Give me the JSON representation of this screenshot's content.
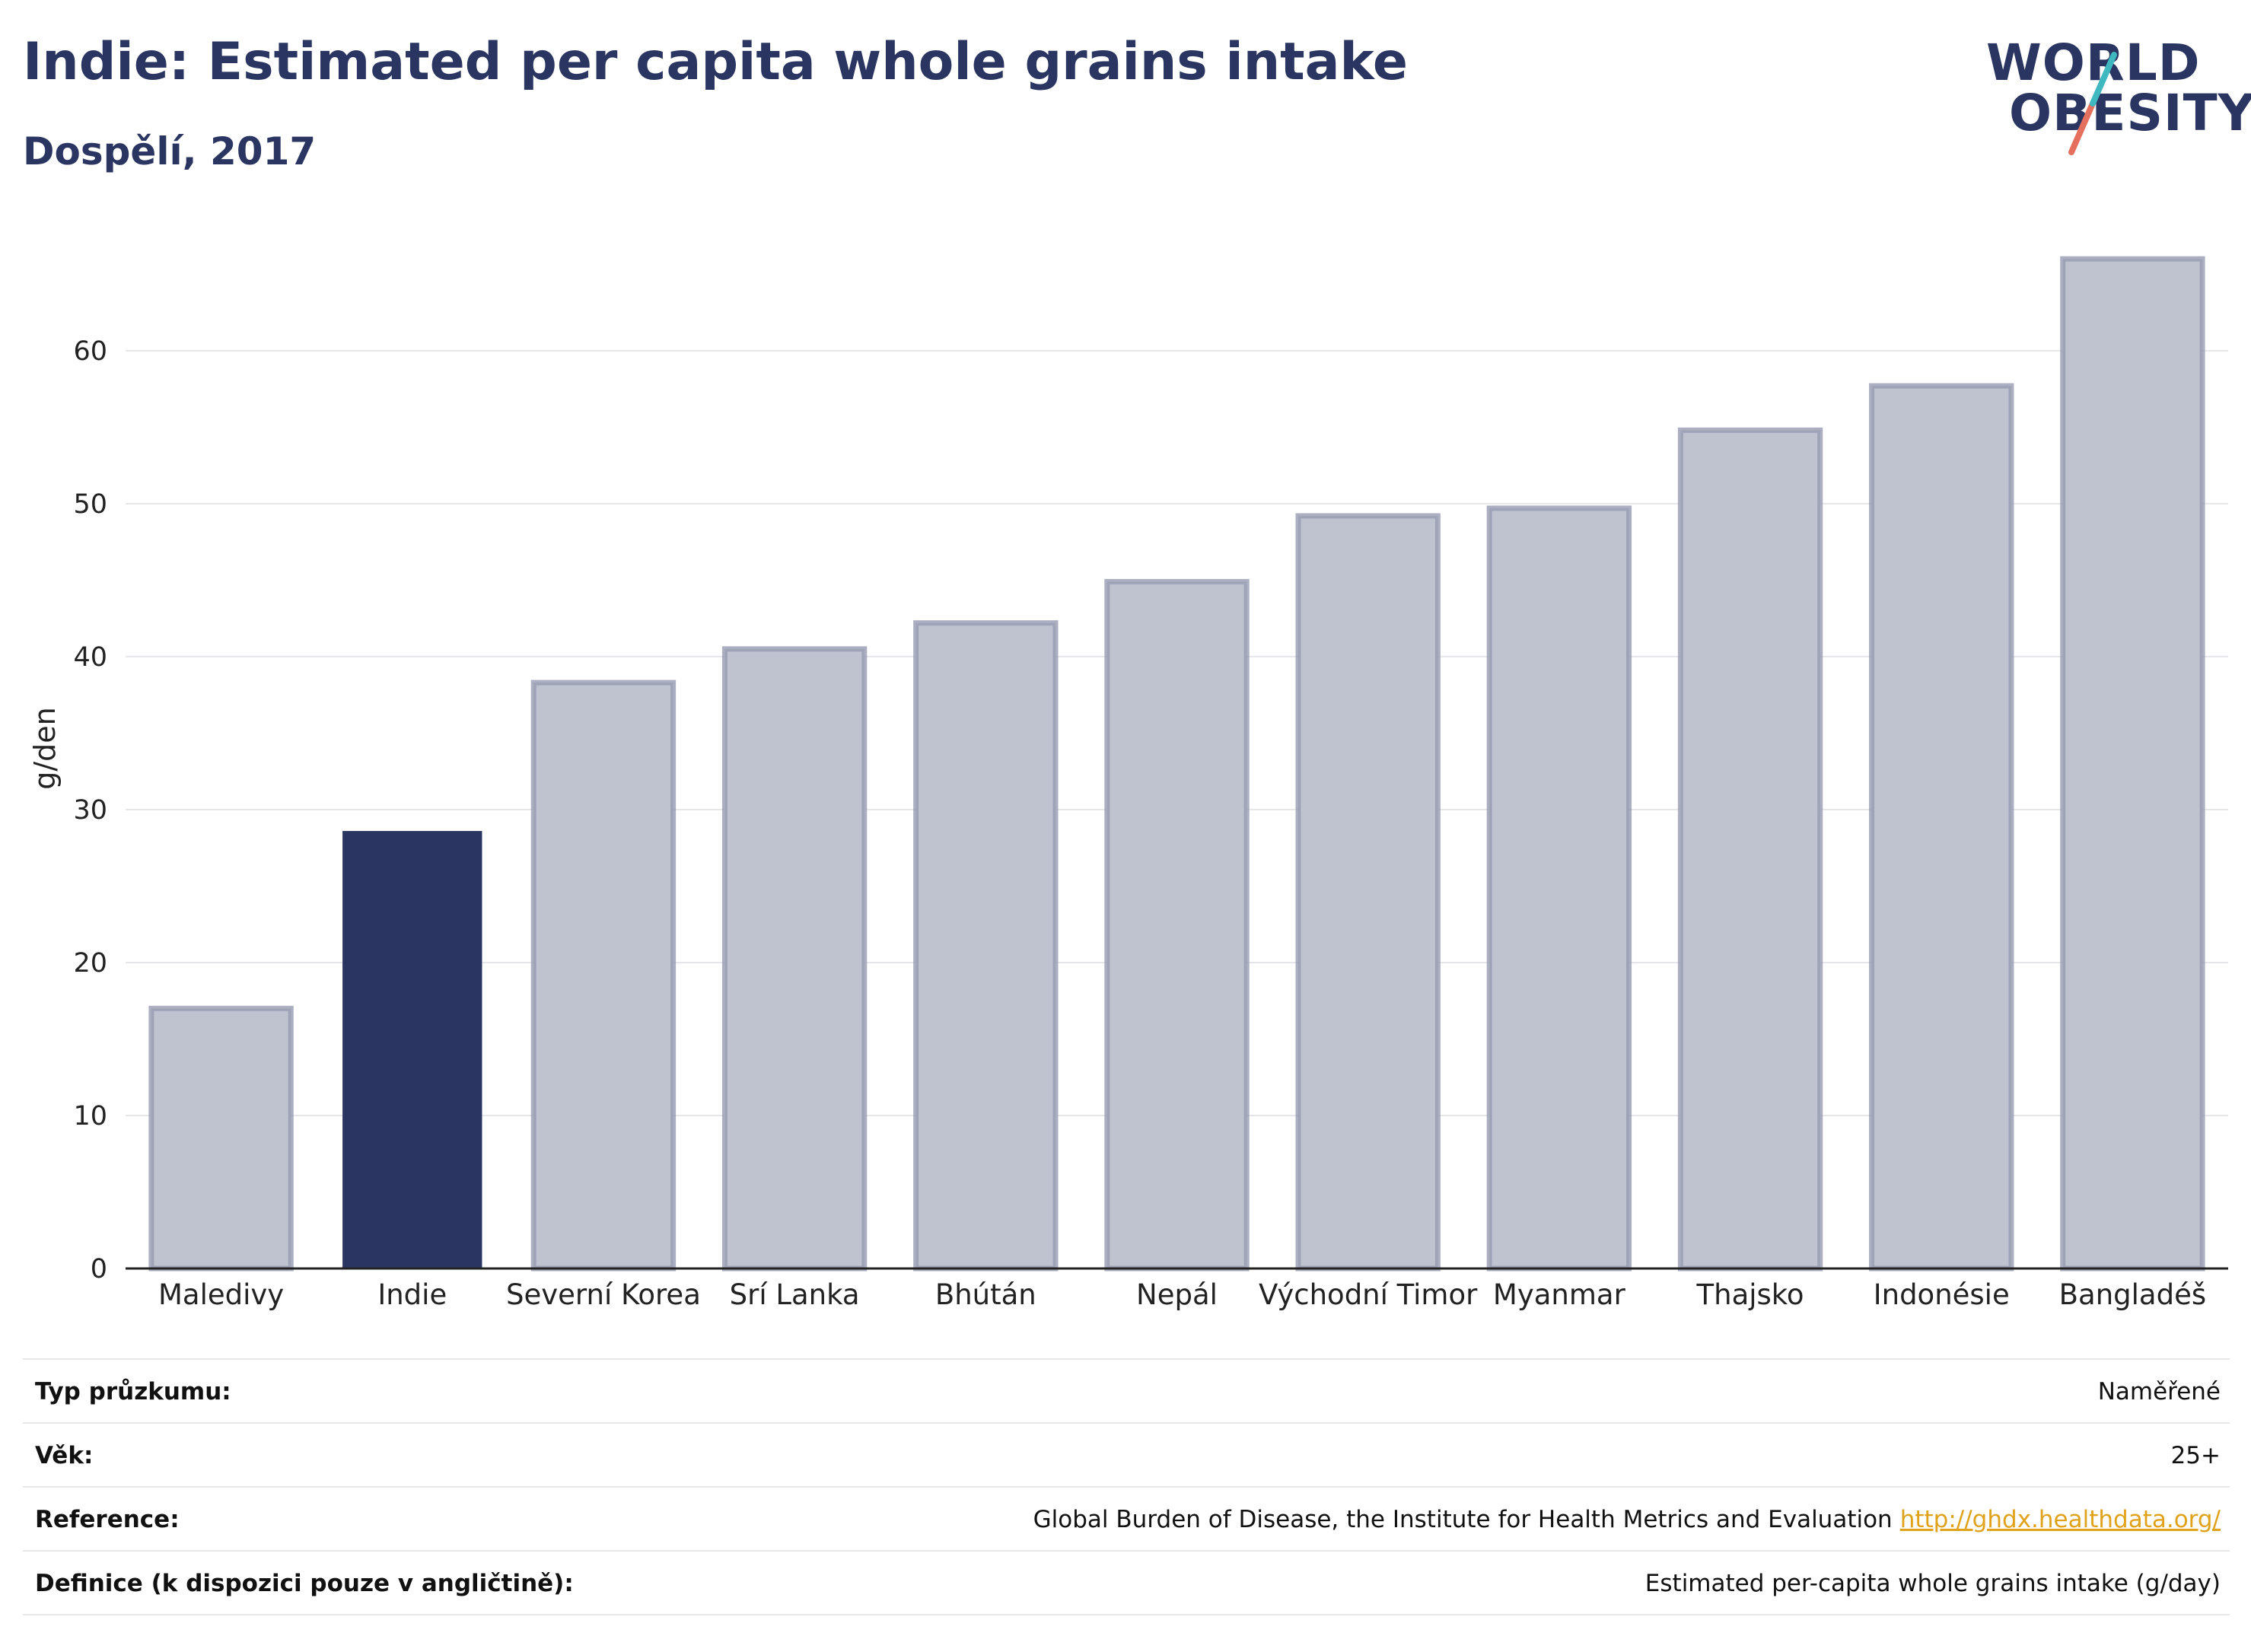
{
  "title": "Indie: Estimated per capita whole grains intake",
  "subtitle": "Dospělí, 2017",
  "logo": {
    "line1": "WORLD",
    "line2": "OBESITY"
  },
  "colors": {
    "highlight": "#2a3561",
    "bar_fill": "#bfc3d0",
    "bar_stroke": "#969bb2",
    "link": "#e0a21a"
  },
  "chart_data": {
    "type": "bar",
    "categories": [
      "Maledivy",
      "Indie",
      "Severní Korea",
      "Srí Lanka",
      "Bhútán",
      "Nepál",
      "Východní Timor",
      "Myanmar",
      "Thajsko",
      "Indonésie",
      "Bangladéš"
    ],
    "values": [
      17.0,
      28.6,
      38.3,
      40.5,
      42.2,
      44.9,
      49.2,
      49.7,
      54.8,
      57.7,
      66.0
    ],
    "highlight": "Indie",
    "ylabel": "g/den",
    "xlabel": "",
    "ylim": [
      0,
      68
    ],
    "yticks": [
      0,
      10,
      20,
      30,
      40,
      50,
      60
    ],
    "grid": true
  },
  "info": [
    {
      "key": "Typ průzkumu:",
      "value": "Naměřené",
      "link": ""
    },
    {
      "key": "Věk:",
      "value": "25+",
      "link": ""
    },
    {
      "key": "Reference:",
      "value": "Global Burden of Disease, the Institute for Health Metrics and Evaluation",
      "link": "http://ghdx.healthdata.org/"
    },
    {
      "key": "Definice (k dispozici pouze v angličtině):",
      "value": "Estimated per-capita whole grains intake (g/day)",
      "link": ""
    }
  ]
}
